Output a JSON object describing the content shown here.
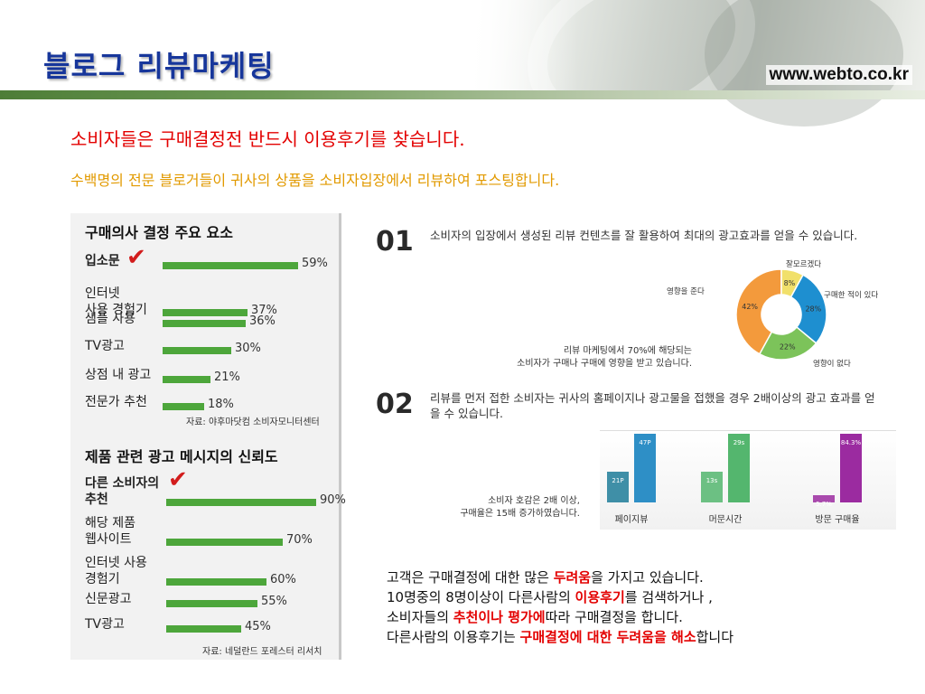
{
  "header": {
    "title": "블로그 리뷰마케팅",
    "url": "www.webto.co.kr"
  },
  "headline": "소비자들은  구매결정전  반드시  이용후기를  찾습니다.",
  "subline": "수백명의 전문 블로거들이 귀사의 상품을 소비자입장에서 리뷰하여 포스팅합니다.",
  "colors": {
    "title_blue": "#17369b",
    "headline_red": "#e30000",
    "subline_orange": "#e29a00",
    "bar_green": "#4da63b",
    "donut_orange": "#f39a3c",
    "donut_green": "#7cc35a",
    "donut_blue": "#1e8fd0",
    "donut_yellow": "#f1e06b",
    "vbar_teal": "#1f7d99",
    "vbar_blue": "#2e8fc6",
    "vbar_green": "#54b66e",
    "vbar_purple": "#9b2ba0"
  },
  "chart_data": [
    {
      "type": "bar",
      "title": "구매의사 결정 주요 요소",
      "categories": [
        "입소문",
        "인터넷\n사용 경험기",
        "샘플 사용",
        "TV광고",
        "상점 내 광고",
        "전문가 추천"
      ],
      "values": [
        59,
        37,
        36,
        30,
        21,
        18
      ],
      "value_labels": [
        "59%",
        "37%",
        "36%",
        "30%",
        "21%",
        "18%"
      ],
      "source": "자료: 야후마닷컴 소비자모니터센터",
      "xlim": [
        0,
        100
      ],
      "highlight": "check-icon"
    },
    {
      "type": "bar",
      "title": "제품 관련 광고 메시지의 신뢰도",
      "categories": [
        "다른 소비자의\n추천",
        "해당 제품\n웹사이트",
        "인터넷 사용\n경험기",
        "신문광고",
        "TV광고"
      ],
      "values": [
        90,
        70,
        60,
        55,
        45
      ],
      "value_labels": [
        "90%",
        "70%",
        "60%",
        "55%",
        "45%"
      ],
      "source": "자료: 네덜란드 포레스터 리서치",
      "xlim": [
        0,
        100
      ],
      "highlight": "check-icon"
    },
    {
      "type": "pie",
      "donut": true,
      "labels": [
        "영향을 준다",
        "잘모르겠다",
        "구매한 적이 있다",
        "영향이 없다"
      ],
      "values": [
        42,
        8,
        28,
        22
      ],
      "value_labels": [
        "42%",
        "8%",
        "28%",
        "22%"
      ],
      "colors": [
        "#f39a3c",
        "#f1e06b",
        "#1e8fd0",
        "#7cc35a"
      ]
    },
    {
      "type": "bar",
      "orientation": "vertical",
      "categories": [
        "페이지뷰",
        "머문시간",
        "방문 구매율"
      ],
      "series": [
        {
          "values": [
            21,
            13,
            5.7
          ],
          "value_labels": [
            "21P",
            "13s",
            "5.7%"
          ]
        },
        {
          "values": [
            47,
            29,
            84.3
          ],
          "value_labels": [
            "47P",
            "29s",
            "84.3%"
          ]
        }
      ]
    }
  ],
  "section1": {
    "number": "01",
    "text": "소비자의 입장에서 생성된 리뷰 컨텐츠를 잘 활용하여 최대의 광고효과를  얻을 수 있습니다.",
    "note_line1": "리뷰 마케팅에서 70%에 해당되는",
    "note_line2": "소비자가 구매나 구매에 영향을 받고 있습니다."
  },
  "section2": {
    "number": "02",
    "text": "리뷰를 먼저 접한 소비자는 귀사의 홈페이지나 광고물을 접했을 경우 2배이상의 광고 효과를 얻을 수 있습니다.",
    "note_line1": "소비자 호감은 2배 이상,",
    "note_line2": "구매율은 15배 증가하였습니다."
  },
  "bottom": {
    "l1a": "고객은 구매결정에 대한 많은 ",
    "l1b": "두려움",
    "l1c": "을 가지고 있습니다.",
    "l2a": "10명중의 8명이상이 다른사람의 ",
    "l2b": "이용후기",
    "l2c": "를 검색하거나 ,",
    "l3a": "소비자들의 ",
    "l3b": "추천이나 평가에",
    "l3c": "따라 구매결정을 합니다.",
    "l4a": "다른사람의 이용후기는 ",
    "l4b": "구매결정에 대한 두려움을 해소",
    "l4c": "합니다"
  }
}
